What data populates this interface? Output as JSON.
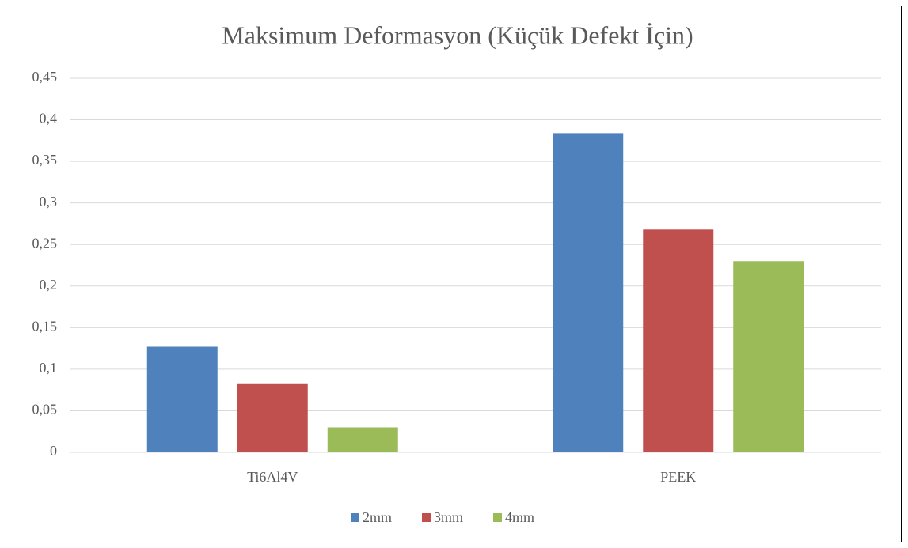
{
  "chart_data": {
    "type": "bar",
    "title": "Maksimum Deformasyon (Küçük Defekt İçin)",
    "categories": [
      "Ti6Al4V",
      "PEEK"
    ],
    "series": [
      {
        "name": "2mm",
        "color": "#4f81bd",
        "values": [
          0.127,
          0.384
        ]
      },
      {
        "name": "3mm",
        "color": "#c0504d",
        "values": [
          0.083,
          0.268
        ]
      },
      {
        "name": "4mm",
        "color": "#9bbb59",
        "values": [
          0.03,
          0.23
        ]
      }
    ],
    "ylim": [
      0,
      0.45
    ],
    "yticks": [
      0,
      {
        "value": 0.05,
        "label": "0,05"
      },
      {
        "value": 0.1,
        "label": "0,1"
      },
      {
        "value": 0.15,
        "label": "0,15"
      },
      {
        "value": 0.2,
        "label": "0,2"
      },
      {
        "value": 0.25,
        "label": "0,25"
      },
      {
        "value": 0.3,
        "label": "0,3"
      },
      {
        "value": 0.35,
        "label": "0,35"
      },
      {
        "value": 0.4,
        "label": "0,4"
      },
      {
        "value": 0.45,
        "label": "0,45"
      }
    ],
    "grid": true,
    "legend": "bottom"
  }
}
